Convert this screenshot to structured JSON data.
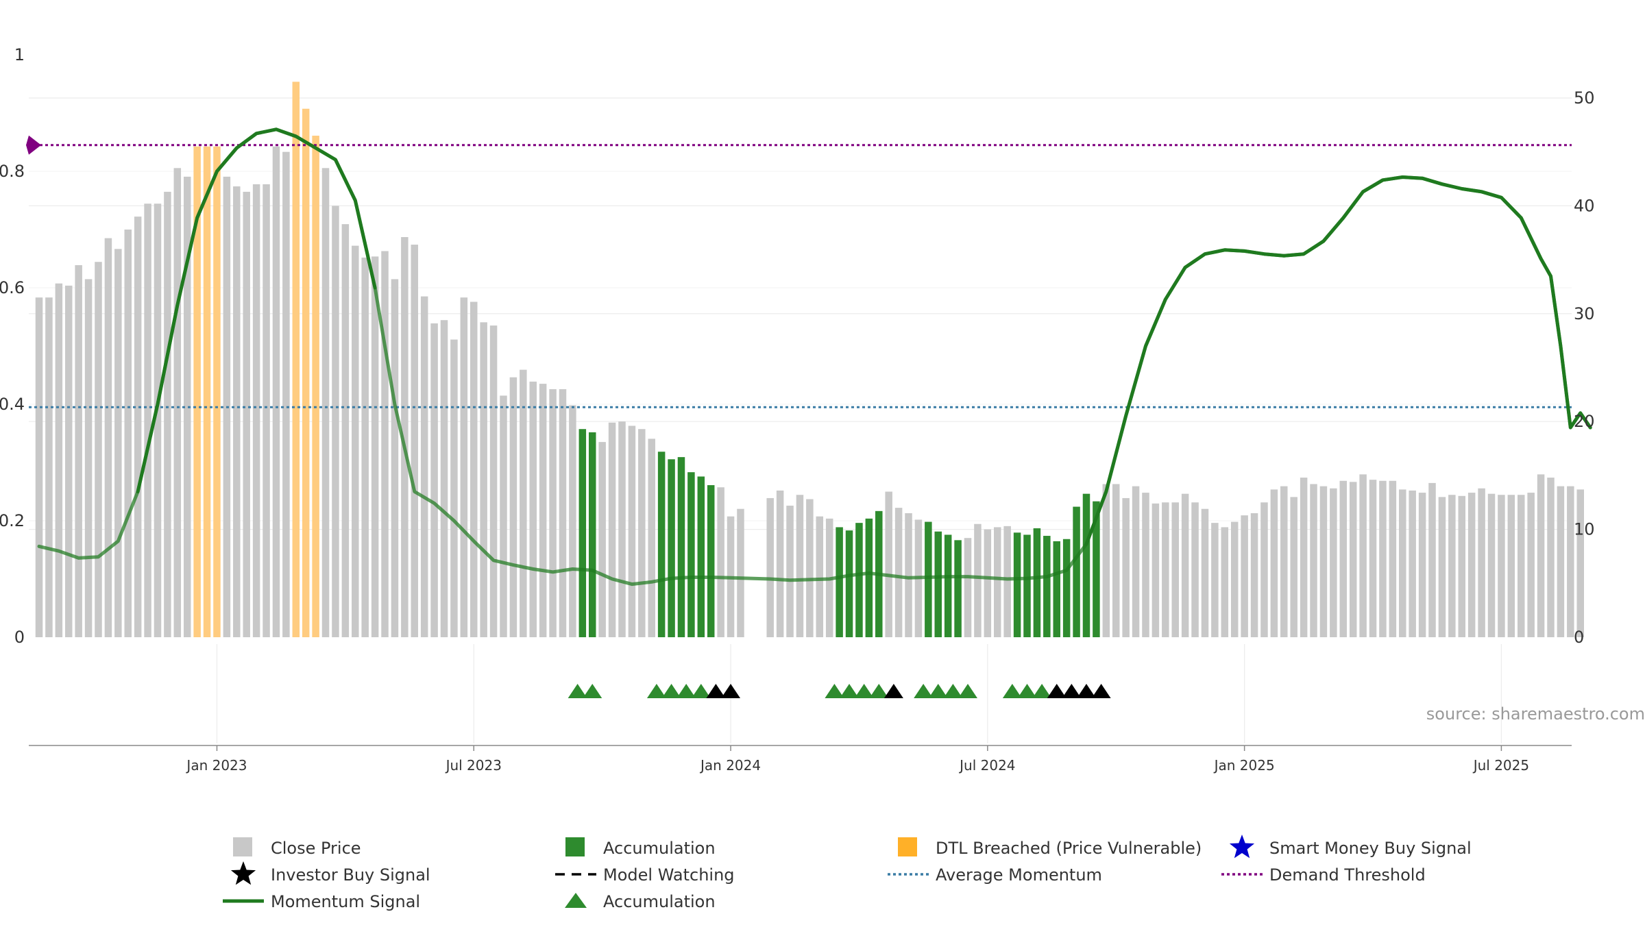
{
  "source_text": "source: sharemaestro.com",
  "chart_data": {
    "type": "bar",
    "left_axis": {
      "ylim": [
        0,
        1
      ],
      "ticks": [
        "0",
        "0.2",
        "0.4",
        "0.6",
        "0.8",
        "1"
      ]
    },
    "right_axis": {
      "ylim": [
        0,
        54
      ],
      "ticks": [
        "0",
        "10",
        "20",
        "30",
        "40",
        "50"
      ]
    },
    "x_ticks": [
      "Jan 2023",
      "Jul 2023",
      "Jan 2024",
      "Jul 2024",
      "Jan 2025",
      "Jul 2025"
    ],
    "x_tick_weeks": [
      18,
      44,
      70,
      96,
      122,
      148
    ],
    "weeks": 157,
    "close_price": [
      31.5,
      31.5,
      32.8,
      32.6,
      34.5,
      33.2,
      34.8,
      37.0,
      36.0,
      37.8,
      39.0,
      40.2,
      40.2,
      41.3,
      43.5,
      42.7,
      45.5,
      45.5,
      45.5,
      42.7,
      41.8,
      41.3,
      42.0,
      42.0,
      45.5,
      45.0,
      51.5,
      49.0,
      46.5,
      43.5,
      40.0,
      38.3,
      36.3,
      35.2,
      35.3,
      35.8,
      33.2,
      37.1,
      36.4,
      31.6,
      29.1,
      29.4,
      27.6,
      31.5,
      31.1,
      29.2,
      28.9,
      22.4,
      24.1,
      24.8,
      23.7,
      23.5,
      23.0,
      23.0,
      21.5,
      19.3,
      19.0,
      18.1,
      19.9,
      20.0,
      19.6,
      19.3,
      18.4,
      17.2,
      16.5,
      16.7,
      15.3,
      14.9,
      14.1,
      13.9,
      11.2,
      11.9,
      0,
      0,
      12.9,
      13.6,
      12.2,
      13.2,
      12.8,
      11.2,
      11.0,
      10.2,
      9.9,
      10.6,
      11.0,
      11.7,
      13.5,
      12.0,
      11.5,
      10.9,
      10.7,
      9.8,
      9.5,
      9.0,
      9.2,
      10.5,
      10.0,
      10.2,
      10.3,
      9.7,
      9.5,
      10.1,
      9.4,
      8.9,
      9.1,
      12.1,
      13.3,
      12.6,
      14.2,
      14.2,
      12.9,
      14.0,
      13.4,
      12.4,
      12.5,
      12.5,
      13.3,
      12.5,
      11.9,
      10.6,
      10.2,
      10.7,
      11.3,
      11.5,
      12.5,
      13.7,
      14.0,
      13.0,
      14.8,
      14.2,
      14.0,
      13.8,
      14.5,
      14.4,
      15.1,
      14.6,
      14.5,
      14.5,
      13.7,
      13.6,
      13.4,
      14.3,
      13.0,
      13.2,
      13.1,
      13.4,
      13.8,
      13.3,
      13.2,
      13.2,
      13.2,
      13.4,
      15.1,
      14.8,
      14.0,
      14.0,
      13.7
    ],
    "zones": {
      "accumulation_weeks": [
        55,
        56,
        63,
        64,
        65,
        66,
        67,
        68,
        81,
        82,
        83,
        84,
        85,
        90,
        91,
        92,
        93,
        99,
        100,
        101,
        102,
        103,
        104,
        105,
        106,
        107
      ],
      "dtl_breached_weeks": [
        16,
        17,
        18,
        26,
        27,
        28
      ]
    },
    "momentum_signal": [
      [
        0,
        0.156
      ],
      [
        2,
        0.148
      ],
      [
        4,
        0.136
      ],
      [
        6,
        0.138
      ],
      [
        8,
        0.165
      ],
      [
        10,
        0.25
      ],
      [
        12,
        0.4
      ],
      [
        14,
        0.57
      ],
      [
        16,
        0.72
      ],
      [
        18,
        0.8
      ],
      [
        20,
        0.84
      ],
      [
        22,
        0.865
      ],
      [
        24,
        0.872
      ],
      [
        26,
        0.86
      ],
      [
        28,
        0.84
      ],
      [
        30,
        0.82
      ],
      [
        32,
        0.75
      ],
      [
        34,
        0.6
      ],
      [
        36,
        0.4
      ],
      [
        38,
        0.25
      ],
      [
        40,
        0.23
      ],
      [
        42,
        0.2
      ],
      [
        44,
        0.165
      ],
      [
        46,
        0.132
      ],
      [
        48,
        0.124
      ],
      [
        50,
        0.117
      ],
      [
        52,
        0.112
      ],
      [
        54,
        0.117
      ],
      [
        56,
        0.115
      ],
      [
        58,
        0.1
      ],
      [
        60,
        0.091
      ],
      [
        62,
        0.095
      ],
      [
        64,
        0.101
      ],
      [
        66,
        0.103
      ],
      [
        68,
        0.103
      ],
      [
        70,
        0.102
      ],
      [
        72,
        0.101
      ],
      [
        74,
        0.1
      ],
      [
        76,
        0.098
      ],
      [
        78,
        0.099
      ],
      [
        80,
        0.1
      ],
      [
        82,
        0.106
      ],
      [
        84,
        0.11
      ],
      [
        86,
        0.106
      ],
      [
        88,
        0.102
      ],
      [
        90,
        0.103
      ],
      [
        92,
        0.104
      ],
      [
        94,
        0.104
      ],
      [
        96,
        0.102
      ],
      [
        98,
        0.1
      ],
      [
        100,
        0.101
      ],
      [
        102,
        0.104
      ],
      [
        104,
        0.115
      ],
      [
        106,
        0.16
      ],
      [
        108,
        0.25
      ],
      [
        110,
        0.38
      ],
      [
        112,
        0.5
      ],
      [
        114,
        0.58
      ],
      [
        116,
        0.635
      ],
      [
        118,
        0.658
      ],
      [
        120,
        0.665
      ],
      [
        122,
        0.663
      ],
      [
        124,
        0.658
      ],
      [
        126,
        0.655
      ],
      [
        128,
        0.658
      ],
      [
        130,
        0.68
      ],
      [
        132,
        0.72
      ],
      [
        134,
        0.765
      ],
      [
        136,
        0.785
      ],
      [
        138,
        0.79
      ],
      [
        140,
        0.788
      ],
      [
        142,
        0.778
      ],
      [
        144,
        0.77
      ],
      [
        146,
        0.765
      ],
      [
        148,
        0.755
      ],
      [
        150,
        0.72
      ],
      [
        152,
        0.65
      ],
      [
        153,
        0.62
      ],
      [
        154,
        0.5
      ],
      [
        155,
        0.36
      ],
      [
        156,
        0.385
      ],
      [
        157,
        0.36
      ]
    ],
    "momentum_bright_ranges": [
      [
        9,
        35
      ],
      [
        106,
        157
      ]
    ],
    "average_momentum": 0.395,
    "demand_threshold": 0.845,
    "triangle_markers": {
      "accumulation": [
        54.5,
        56,
        62.5,
        64,
        65.5,
        67,
        80.5,
        82,
        83.5,
        85,
        89.5,
        91,
        92.5,
        94,
        98.5,
        100,
        101.5
      ],
      "model_watching": [
        68.5,
        70,
        86.5,
        103,
        104.5,
        106,
        107.5
      ]
    },
    "legend": [
      {
        "label": "Close Price",
        "symbol": "square-gray"
      },
      {
        "label": "Accumulation",
        "symbol": "square-green"
      },
      {
        "label": "DTL Breached (Price Vulnerable)",
        "symbol": "square-orange"
      },
      {
        "label": "Smart Money Buy Signal",
        "symbol": "star-blue"
      },
      {
        "label": "Investor Buy Signal",
        "symbol": "star-black"
      },
      {
        "label": "Model Watching",
        "symbol": "dash-black"
      },
      {
        "label": "Average Momentum",
        "symbol": "dotted-blue"
      },
      {
        "label": "Demand Threshold",
        "symbol": "dotted-purple"
      },
      {
        "label": "Momentum Signal",
        "symbol": "line-green"
      },
      {
        "label": "Accumulation",
        "symbol": "triangle-green"
      }
    ],
    "colors": {
      "close_price": "#c8c8c8",
      "accumulation": "#2e8b2e",
      "dtl_breached": "#ffcc80",
      "momentum": "#1f7a1f",
      "average_momentum": "#3a7ca5",
      "demand_threshold": "#800080",
      "smart_money": "#0000cc",
      "gridline": "#ececec"
    }
  }
}
